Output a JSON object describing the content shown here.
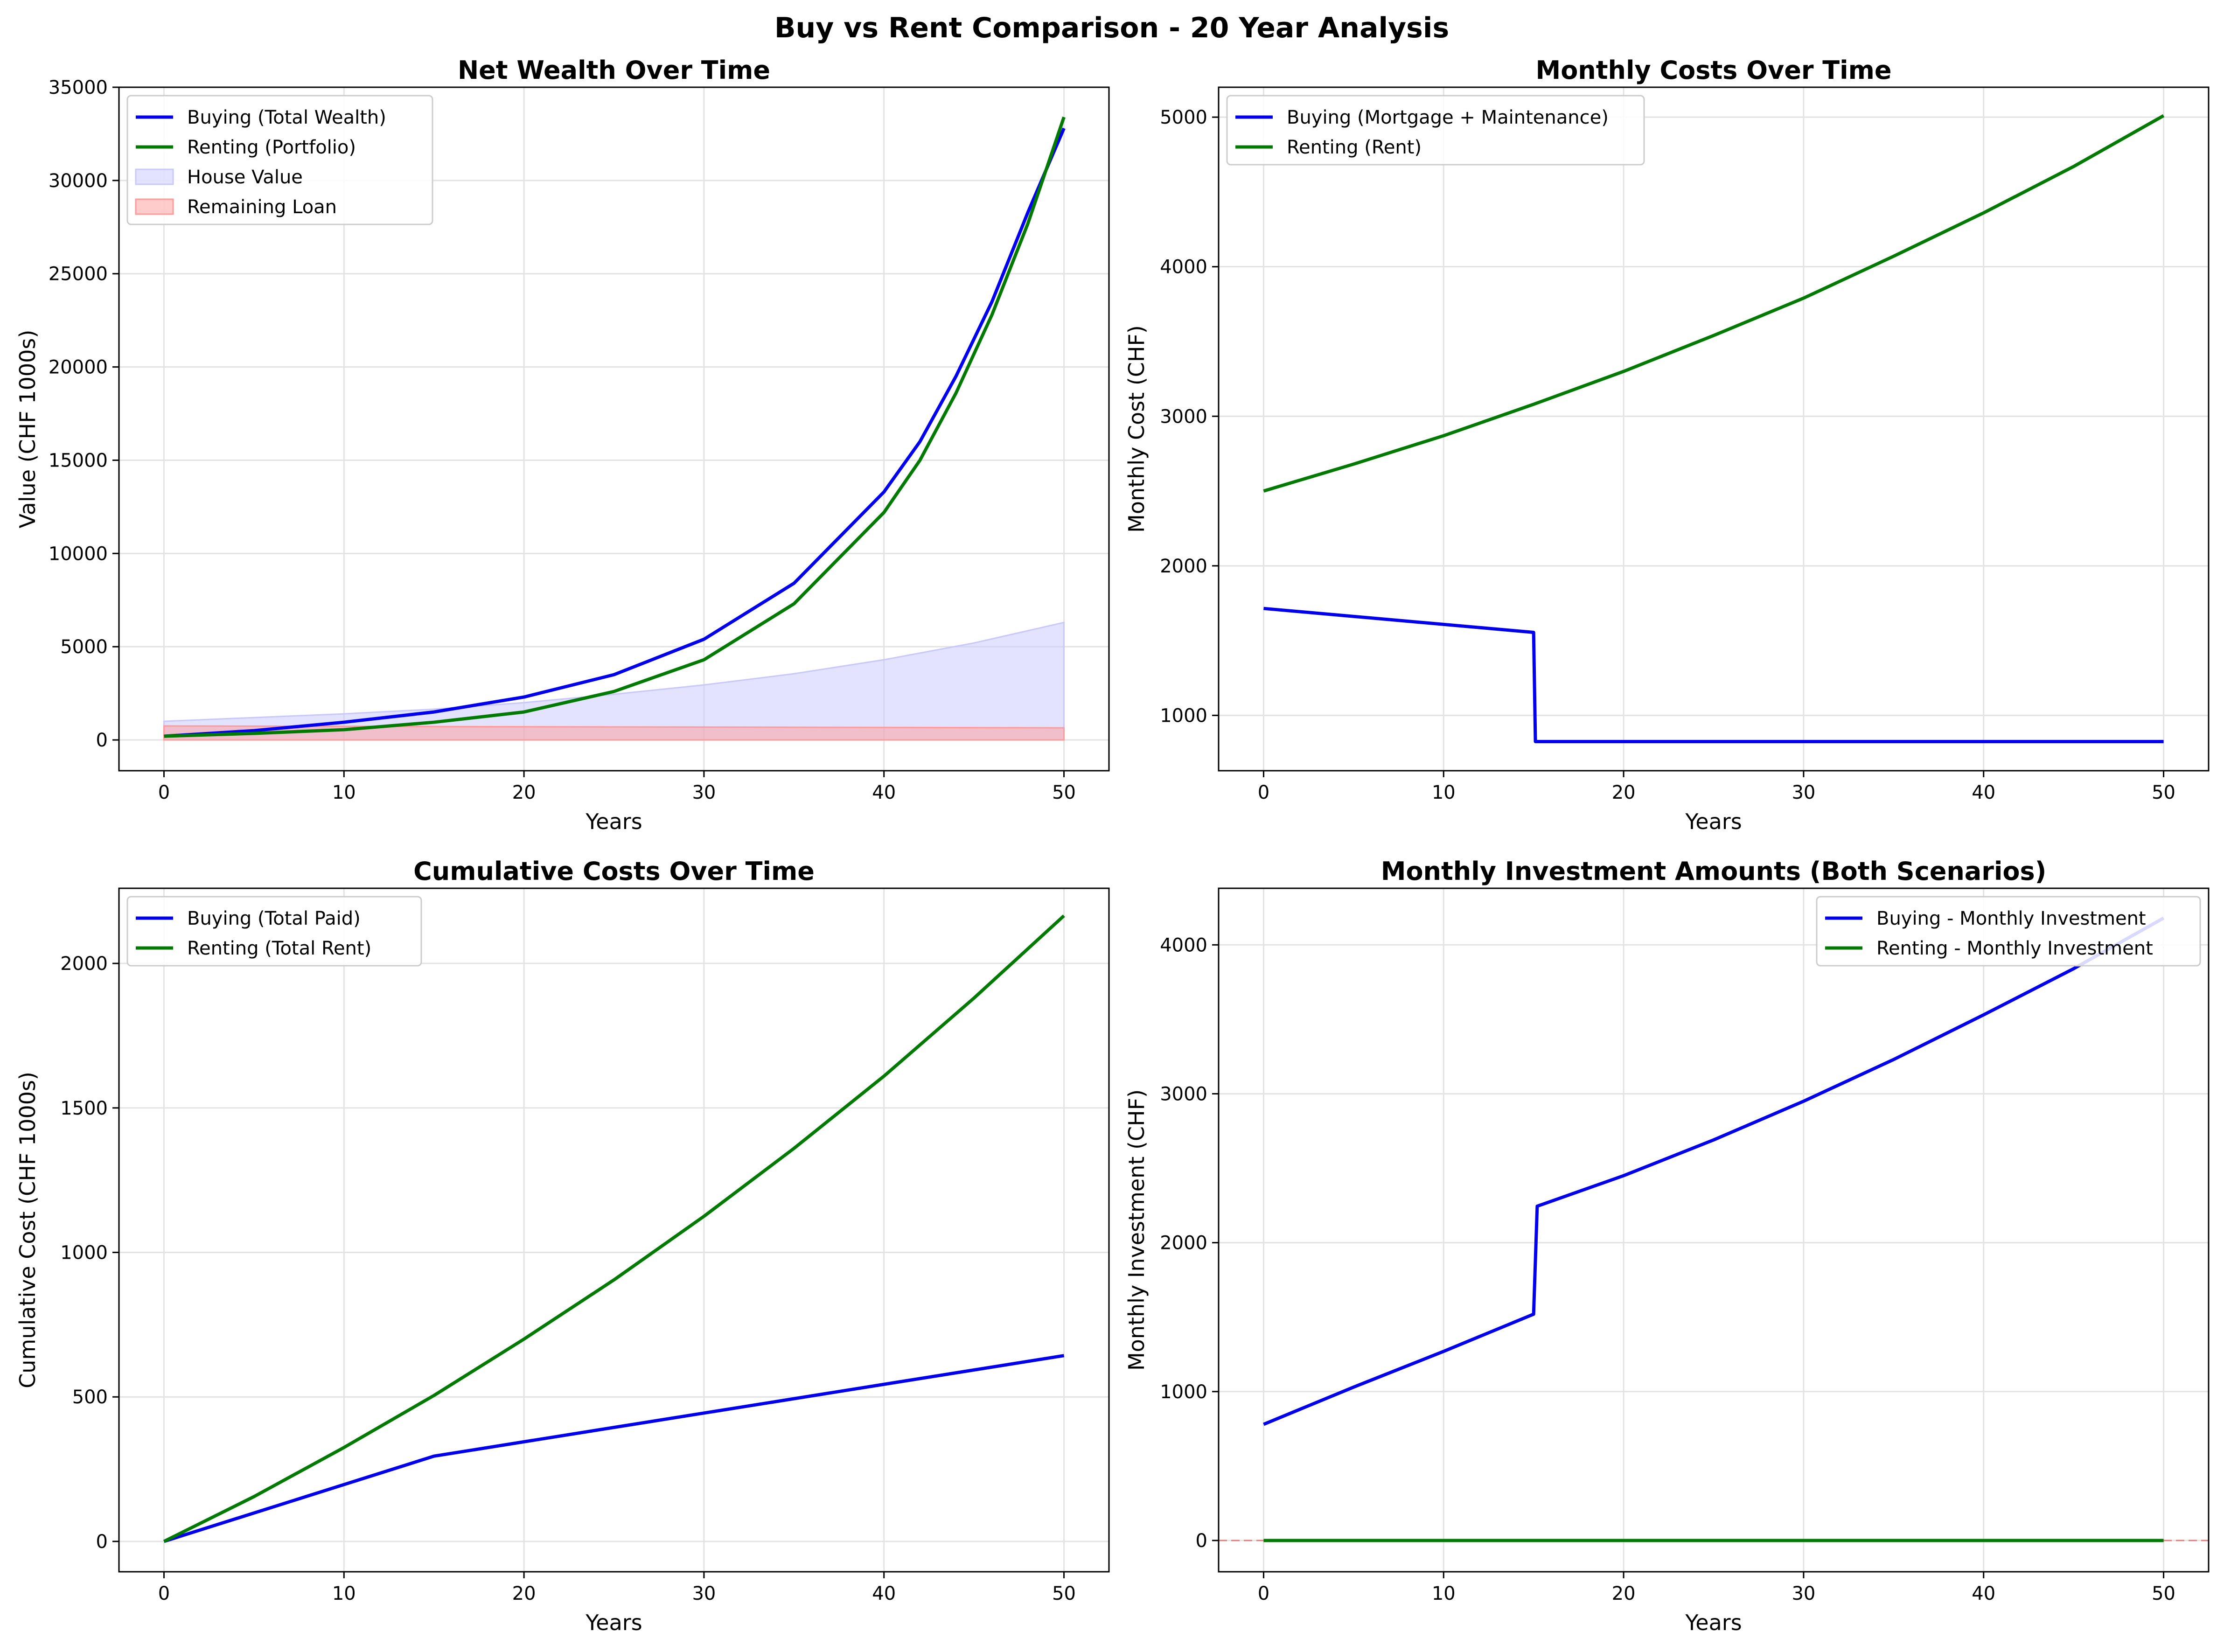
{
  "figure": {
    "suptitle": "Buy vs Rent Comparison - 20 Year Analysis"
  },
  "colors": {
    "buying": "#0000ee",
    "renting": "#007a00",
    "house_fill": "#c8c8ff",
    "loan_fill": "#ff9a9a",
    "zero_line": "#e06666"
  },
  "chart_data": [
    {
      "type": "line",
      "title": "Net Wealth Over Time",
      "xlabel": "Years",
      "ylabel": "Value (CHF 1000s)",
      "xlim": [
        -2.5,
        52.5
      ],
      "ylim": [
        -1650,
        35000
      ],
      "xticks": [
        0,
        10,
        20,
        30,
        40,
        50
      ],
      "yticks": [
        0,
        5000,
        10000,
        15000,
        20000,
        25000,
        30000,
        35000
      ],
      "grid": true,
      "legend_position": "upper left",
      "series": [
        {
          "name": "Buying (Total Wealth)",
          "kind": "line",
          "color": "#0000ee",
          "x": [
            0,
            5,
            10,
            15,
            20,
            25,
            30,
            35,
            40,
            42,
            44,
            46,
            48,
            50
          ],
          "y": [
            200,
            500,
            950,
            1500,
            2300,
            3500,
            5400,
            8400,
            13300,
            16000,
            19500,
            23500,
            28300,
            32800
          ]
        },
        {
          "name": "Renting (Portfolio)",
          "kind": "line",
          "color": "#007a00",
          "x": [
            0,
            5,
            10,
            15,
            20,
            25,
            30,
            35,
            40,
            42,
            44,
            46,
            48,
            50
          ],
          "y": [
            200,
            350,
            550,
            950,
            1500,
            2600,
            4300,
            7300,
            12200,
            15000,
            18600,
            22800,
            27700,
            33400
          ]
        },
        {
          "name": "House Value",
          "kind": "area",
          "color": "#c8c8ff",
          "x": [
            0,
            5,
            10,
            15,
            20,
            25,
            30,
            35,
            40,
            45,
            50
          ],
          "y": [
            1000,
            1200,
            1400,
            1650,
            2000,
            2450,
            2950,
            3550,
            4300,
            5200,
            6300
          ]
        },
        {
          "name": "Remaining Loan",
          "kind": "area",
          "color": "#ff9a9a",
          "x": [
            0,
            50
          ],
          "y": [
            750,
            650
          ]
        }
      ]
    },
    {
      "type": "line",
      "title": "Monthly Costs Over Time",
      "xlabel": "Years",
      "ylabel": "Monthly Cost (CHF)",
      "xlim": [
        -2.5,
        52.5
      ],
      "ylim": [
        630,
        5200
      ],
      "xticks": [
        0,
        10,
        20,
        30,
        40,
        50
      ],
      "yticks": [
        1000,
        2000,
        3000,
        4000,
        5000
      ],
      "grid": true,
      "legend_position": "upper left",
      "series": [
        {
          "name": "Buying (Mortgage + Maintenance)",
          "kind": "line",
          "color": "#0000ee",
          "x": [
            0,
            15,
            15.1,
            50
          ],
          "y": [
            1715,
            1555,
            825,
            825
          ]
        },
        {
          "name": "Renting (Rent)",
          "kind": "line",
          "color": "#007a00",
          "x": [
            0,
            5,
            10,
            15,
            20,
            25,
            30,
            35,
            40,
            45,
            50
          ],
          "y": [
            2500,
            2680,
            2870,
            3080,
            3300,
            3540,
            3790,
            4070,
            4360,
            4670,
            5010
          ]
        }
      ]
    },
    {
      "type": "line",
      "title": "Cumulative Costs Over Time",
      "xlabel": "Years",
      "ylabel": "Cumulative Cost (CHF 1000s)",
      "xlim": [
        -2.5,
        52.5
      ],
      "ylim": [
        -105,
        2260
      ],
      "xticks": [
        0,
        10,
        20,
        30,
        40,
        50
      ],
      "yticks": [
        0,
        500,
        1000,
        1500,
        2000
      ],
      "grid": true,
      "legend_position": "upper left",
      "series": [
        {
          "name": "Buying (Total Paid)",
          "kind": "line",
          "color": "#0000ee",
          "x": [
            0,
            15,
            50
          ],
          "y": [
            0,
            295,
            643
          ]
        },
        {
          "name": "Renting (Total Rent)",
          "kind": "line",
          "color": "#007a00",
          "x": [
            0,
            5,
            10,
            15,
            20,
            25,
            30,
            35,
            40,
            45,
            50
          ],
          "y": [
            0,
            155,
            325,
            505,
            700,
            905,
            1125,
            1360,
            1610,
            1880,
            2165
          ]
        }
      ]
    },
    {
      "type": "line",
      "title": "Monthly Investment Amounts (Both Scenarios)",
      "xlabel": "Years",
      "ylabel": "Monthly Investment (CHF)",
      "xlim": [
        -2.5,
        52.5
      ],
      "ylim": [
        -210,
        4380
      ],
      "xticks": [
        0,
        10,
        20,
        30,
        40,
        50
      ],
      "yticks": [
        0,
        1000,
        2000,
        3000,
        4000
      ],
      "grid": true,
      "legend_position": "upper right",
      "zero_reference_line": 0,
      "series": [
        {
          "name": "Buying - Monthly Investment",
          "kind": "line",
          "color": "#0000ee",
          "x": [
            0,
            5,
            10,
            15,
            15.2,
            20,
            25,
            30,
            35,
            40,
            45,
            50
          ],
          "y": [
            780,
            1030,
            1270,
            1520,
            2245,
            2450,
            2690,
            2950,
            3230,
            3530,
            3840,
            4180
          ]
        },
        {
          "name": "Renting - Monthly Investment",
          "kind": "line",
          "color": "#007a00",
          "x": [
            0,
            50
          ],
          "y": [
            0,
            0
          ]
        }
      ]
    }
  ]
}
